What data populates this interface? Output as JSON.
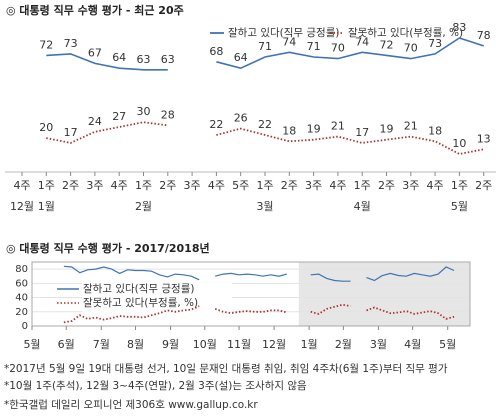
{
  "charts": [
    {
      "type": "line",
      "title": "◎  대통령 직무 수행 평가 - 최근 20주",
      "categories": [
        "4주",
        "1주",
        "2주",
        "3주",
        "4주",
        "1주",
        "2주",
        "3주",
        "4주",
        "5주",
        "1주",
        "2주",
        "3주",
        "4주",
        "1주",
        "2주",
        "3주",
        "4주",
        "1주",
        "2주"
      ],
      "month_labels": [
        "12월",
        "1월",
        null,
        null,
        null,
        "2월",
        null,
        null,
        null,
        null,
        "3월",
        null,
        null,
        null,
        "4월",
        null,
        null,
        null,
        "5월",
        null
      ],
      "ylim": [
        5,
        88
      ],
      "series": [
        {
          "name": "잘하고 있다(직무 긍정률)",
          "color": "#3f73b4",
          "dash": false,
          "values": [
            null,
            72,
            73,
            67,
            64,
            63,
            63,
            null,
            68,
            64,
            71,
            74,
            71,
            70,
            74,
            72,
            70,
            73,
            83,
            78
          ]
        },
        {
          "name": "잘못하고 있다(부정률, %)",
          "color": "#b03030",
          "dash": true,
          "values": [
            null,
            20,
            17,
            24,
            27,
            30,
            28,
            null,
            22,
            26,
            22,
            18,
            19,
            21,
            17,
            19,
            21,
            18,
            10,
            13
          ]
        }
      ]
    },
    {
      "type": "line",
      "title": "◎  대통령 직무 수행 평가 - 2017/2018년",
      "x": [
        4,
        5,
        6,
        7,
        8,
        9,
        10,
        11,
        12,
        13,
        14,
        15,
        16,
        17,
        18,
        19,
        20,
        21,
        22,
        23,
        24,
        25,
        26,
        27,
        28,
        29,
        30,
        31,
        32,
        33,
        34,
        35,
        36,
        37,
        38,
        39,
        40,
        41,
        42,
        43,
        44,
        45,
        46,
        47,
        48,
        49,
        50,
        51,
        52,
        53
      ],
      "xlim": [
        0,
        55
      ],
      "xticks": [
        {
          "value": 0,
          "label": "5월"
        },
        {
          "value": 4.3,
          "label": "6월"
        },
        {
          "value": 8.7,
          "label": "7월"
        },
        {
          "value": 13,
          "label": "8월"
        },
        {
          "value": 17.4,
          "label": "9월"
        },
        {
          "value": 21.7,
          "label": "10월"
        },
        {
          "value": 26,
          "label": "11월"
        },
        {
          "value": 30.4,
          "label": "12월"
        },
        {
          "value": 34.8,
          "label": "1월"
        },
        {
          "value": 39.1,
          "label": "2월"
        },
        {
          "value": 43.5,
          "label": "3월"
        },
        {
          "value": 47.8,
          "label": "4월"
        },
        {
          "value": 52.2,
          "label": "5월"
        }
      ],
      "ylim": [
        0,
        90
      ],
      "yticks": [
        0,
        20,
        40,
        60,
        80
      ],
      "grid": true,
      "highlight_xrange": [
        33.5,
        55
      ],
      "series": [
        {
          "name": "잘하고 있다(직무 긍정률)",
          "color": "#3f73b4",
          "dash": false,
          "values": [
            84,
            83,
            75,
            79,
            80,
            83,
            80,
            74,
            79,
            78,
            78,
            77,
            72,
            69,
            73,
            72,
            70,
            65,
            null,
            70,
            73,
            74,
            72,
            73,
            72,
            70,
            72,
            70,
            73,
            null,
            null,
            72,
            73,
            67,
            64,
            63,
            63,
            null,
            68,
            64,
            71,
            74,
            71,
            70,
            74,
            72,
            70,
            73,
            83,
            78
          ]
        },
        {
          "name": "잘못하고 있다(부정률, %)",
          "color": "#b03030",
          "dash": true,
          "values": [
            5,
            7,
            15,
            10,
            12,
            9,
            11,
            14,
            13,
            13,
            12,
            15,
            18,
            22,
            20,
            22,
            23,
            28,
            null,
            24,
            20,
            18,
            20,
            21,
            20,
            20,
            22,
            22,
            19,
            null,
            null,
            20,
            17,
            24,
            27,
            30,
            28,
            null,
            22,
            26,
            22,
            18,
            19,
            21,
            17,
            19,
            21,
            18,
            10,
            13
          ]
        }
      ]
    }
  ],
  "notes": [
    "*2017년 5월 9일 19대 대통령 선거, 10일 문재인 대통령 취임, 취임 4주차(6월 1주)부터 직무 평가",
    "*10월 1주(추석), 12월 3~4주(연말), 2월 3주(설)는 조사하지 않음",
    "*한국갤럽 데일리 오피니언 제306호 www.gallup.co.kr"
  ]
}
